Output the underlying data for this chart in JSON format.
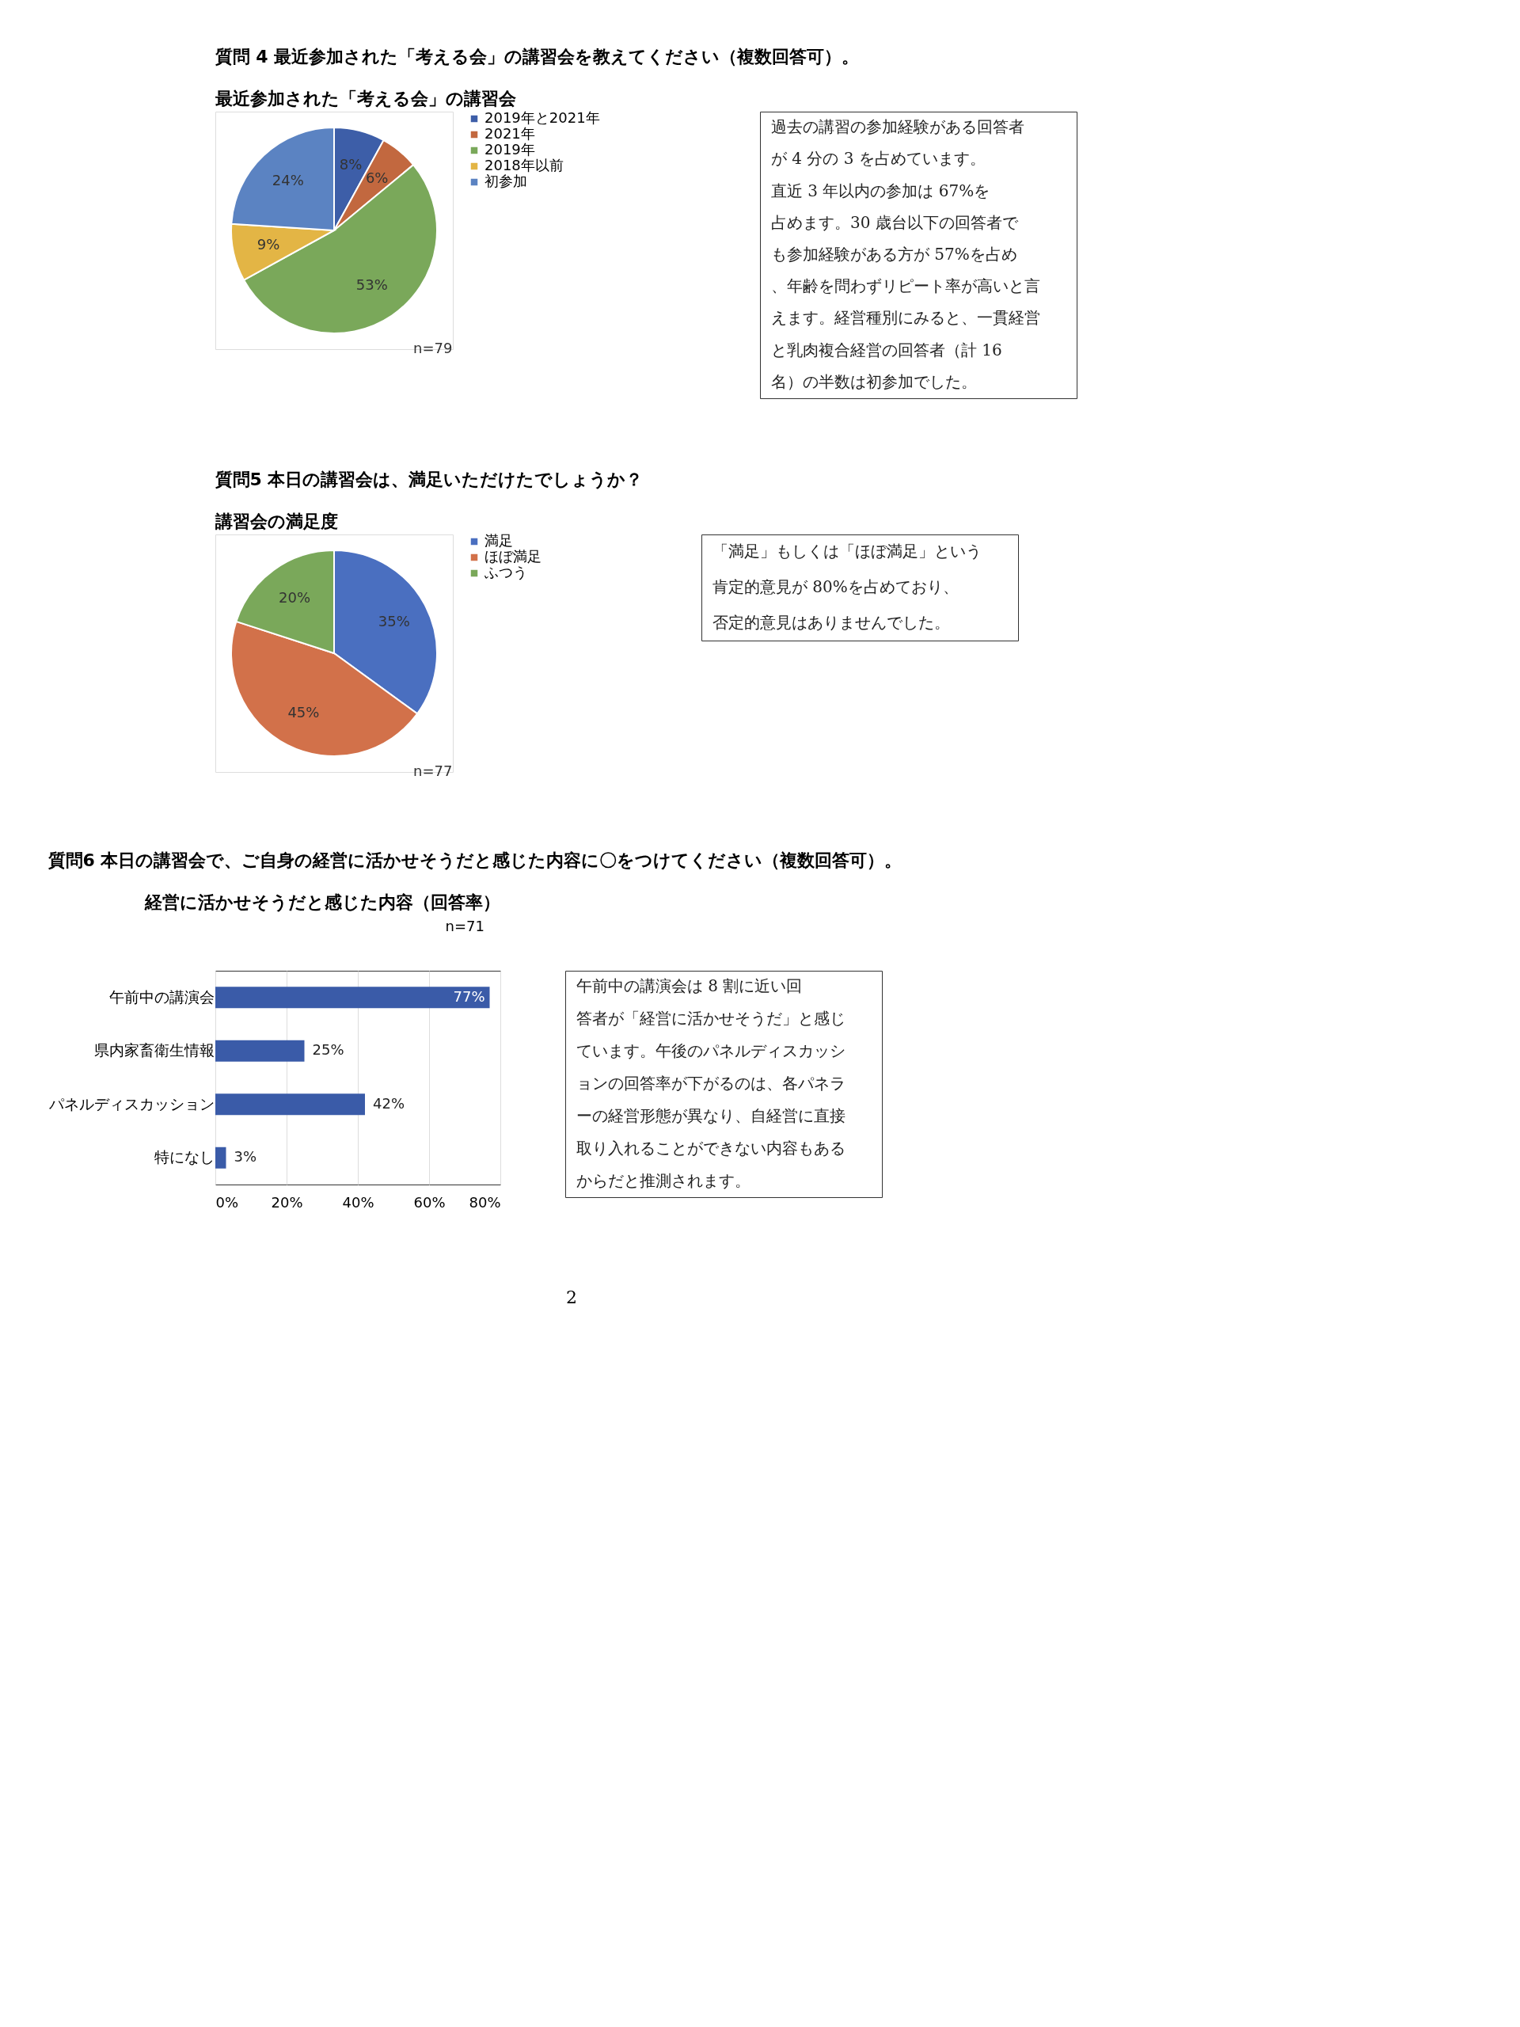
{
  "chart_data": [
    {
      "type": "pie",
      "title": "最近参加された「考える会」の講習会",
      "annotations": [
        "質問 4  最近参加された「考える会」の講習会を教えてください（複数回答可）。",
        "n=79"
      ],
      "categories": [
        "2019年と2021年",
        "2021年",
        "2019年",
        "2018年以前",
        "初参加"
      ],
      "values": [
        8,
        6,
        53,
        9,
        24
      ],
      "value_labels": [
        "8%",
        "6%",
        "53%",
        "9%",
        "24%"
      ],
      "colors": [
        "#3d5ea8",
        "#c2683f",
        "#7aa85a",
        "#e3b545",
        "#5b83c2"
      ],
      "legend": "right"
    },
    {
      "type": "other",
      "annotations": [
        "　過去の講習の参加経験がある回答者が 4 分の 3 を占めています。直近 3 年以内の参加は 67%を占めます。30 歳台以下の回答者でも参加経験がある方が 57%を占め、年齢を問わずリピート率が高いと言えます。経営種別にみると、一貫経営と乳肉複合経営の回答者（計 16 名）の半数は初参加でした。"
      ]
    },
    {
      "type": "pie",
      "title": "講習会の満足度",
      "annotations": [
        "質問5  本日の講習会は、満足いただけたでしょうか？",
        "n=77"
      ],
      "categories": [
        "満足",
        "ほぼ満足",
        "ふつう"
      ],
      "values": [
        35,
        45,
        20
      ],
      "value_labels": [
        "35%",
        "45%",
        "20%"
      ],
      "colors": [
        "#4a6fc0",
        "#d2714a",
        "#7aa85a"
      ],
      "legend": "right"
    },
    {
      "type": "other",
      "annotations": [
        "「満足」もしくは「ほぼ満足」という肯定的意見が 80%を占めており、否定的意見はありませんでした。"
      ]
    },
    {
      "type": "bar",
      "orientation": "horizontal",
      "title": "経営に活かせそうだと感じた内容（回答率）",
      "annotations": [
        "質問6  本日の講習会で、ご自身の経営に活かせそうだと感じた内容に〇をつけてください（複数回答可）。",
        "n=71"
      ],
      "categories": [
        "午前中の講演会",
        "県内家畜衛生情報",
        "パネルディスカッション",
        "特になし"
      ],
      "values": [
        77,
        25,
        42,
        3
      ],
      "value_labels": [
        "77%",
        "25%",
        "42%",
        "3%"
      ],
      "color": "#3a5ba8",
      "xlim": [
        0,
        80
      ],
      "xticks": [
        {
          "value": 0,
          "label": "0%"
        },
        {
          "value": 20,
          "label": "20%"
        },
        {
          "value": 40,
          "label": "40%"
        },
        {
          "value": 60,
          "label": "60%"
        },
        {
          "value": 80,
          "label": "80%"
        }
      ],
      "grid": "x"
    },
    {
      "type": "other",
      "annotations": [
        "　午前中の講演会は 8 割に近い回答者が「経営に活かせそうだ」と感じています。午後のパネルディスカッションの回答率が下がるのは、各パネラーの経営形態が異なり、自経営に直接取り入れることができない内容もあるからだと推測されます。",
        "2"
      ]
    }
  ]
}
